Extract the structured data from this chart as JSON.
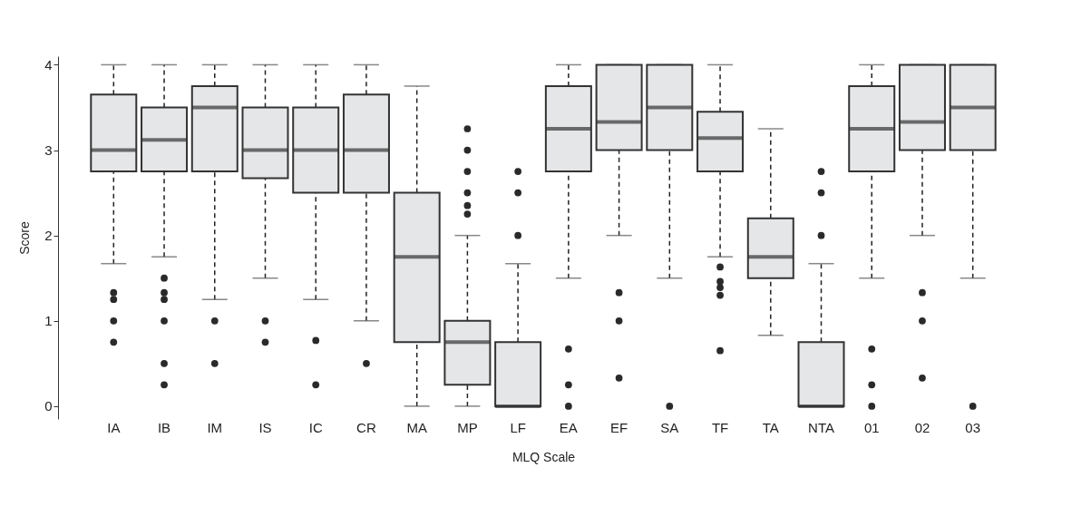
{
  "chart_data": {
    "type": "box",
    "xlabel": "MLQ Scale",
    "ylabel": "Score",
    "color": "#e5e6e8",
    "categories": [
      "IA",
      "IB",
      "IM",
      "IS",
      "IC",
      "CR",
      "MA",
      "MP",
      "LF",
      "EA",
      "EF",
      "SA",
      "TF",
      "TA",
      "NTA",
      "01",
      "02",
      "03"
    ],
    "boxes": [
      {
        "low": 1.67,
        "q1": 2.75,
        "median": 3,
        "q3": 3.65,
        "high": 4,
        "outliers": [
          1.33,
          1.25,
          1,
          0.75
        ]
      },
      {
        "low": 1.75,
        "q1": 2.75,
        "median": 3.12,
        "q3": 3.5,
        "high": 4,
        "outliers": [
          1.5,
          1.33,
          1.25,
          1,
          0.5,
          0.25
        ]
      },
      {
        "low": 1.25,
        "q1": 2.75,
        "median": 3.5,
        "q3": 3.75,
        "high": 4,
        "outliers": [
          1,
          0.5
        ]
      },
      {
        "low": 1.5,
        "q1": 2.67,
        "median": 3,
        "q3": 3.5,
        "high": 4,
        "outliers": [
          1,
          0.75
        ]
      },
      {
        "low": 1.25,
        "q1": 2.5,
        "median": 3,
        "q3": 3.5,
        "high": 4,
        "outliers": [
          0.77,
          0.25
        ]
      },
      {
        "low": 1,
        "q1": 2.5,
        "median": 3,
        "q3": 3.65,
        "high": 4,
        "outliers": [
          0.5
        ]
      },
      {
        "low": 0,
        "q1": 0.75,
        "median": 1.75,
        "q3": 2.5,
        "high": 3.75
      },
      {
        "low": 0,
        "q1": 0.25,
        "median": 0.75,
        "q3": 1,
        "high": 2,
        "outliers": [
          3.25,
          3,
          2.75,
          2.5,
          2.35,
          2.25
        ]
      },
      {
        "low": 0,
        "q1": 0,
        "median": 0,
        "q3": 0.75,
        "high": 1.67,
        "outliers": [
          2.75,
          2.5,
          2
        ]
      },
      {
        "low": 1.5,
        "q1": 2.75,
        "median": 3.25,
        "q3": 3.75,
        "high": 4,
        "outliers": [
          0.67,
          0.25,
          0
        ]
      },
      {
        "low": 2,
        "q1": 3,
        "median": 3.33,
        "q3": 4,
        "high": 4,
        "outliers": [
          1.33,
          1,
          0.33
        ]
      },
      {
        "low": 1.5,
        "q1": 3,
        "median": 3.5,
        "q3": 4,
        "high": 4,
        "outliers": [
          0
        ]
      },
      {
        "low": 1.75,
        "q1": 2.75,
        "median": 3.14,
        "q3": 3.45,
        "high": 4,
        "outliers": [
          1.63,
          1.46,
          1.39,
          1.3,
          0.65
        ]
      },
      {
        "low": 0.83,
        "q1": 1.5,
        "median": 1.75,
        "q3": 2.2,
        "high": 3.25
      },
      {
        "low": 0,
        "q1": 0,
        "median": 0,
        "q3": 0.75,
        "high": 1.67,
        "outliers": [
          2.75,
          2.5,
          2
        ]
      },
      {
        "low": 1.5,
        "q1": 2.75,
        "median": 3.25,
        "q3": 3.75,
        "high": 4,
        "outliers": [
          0.67,
          0.25,
          0
        ]
      },
      {
        "low": 2,
        "q1": 3,
        "median": 3.33,
        "q3": 4,
        "high": 4,
        "outliers": [
          1.33,
          1,
          0.33
        ]
      },
      {
        "low": 1.5,
        "q1": 3,
        "median": 3.5,
        "q3": 4,
        "high": 4,
        "outliers": [
          0
        ]
      }
    ],
    "ylim": [
      -0.15,
      4.1
    ],
    "yticks": [
      0,
      1,
      2,
      3,
      4
    ],
    "grid": false
  }
}
